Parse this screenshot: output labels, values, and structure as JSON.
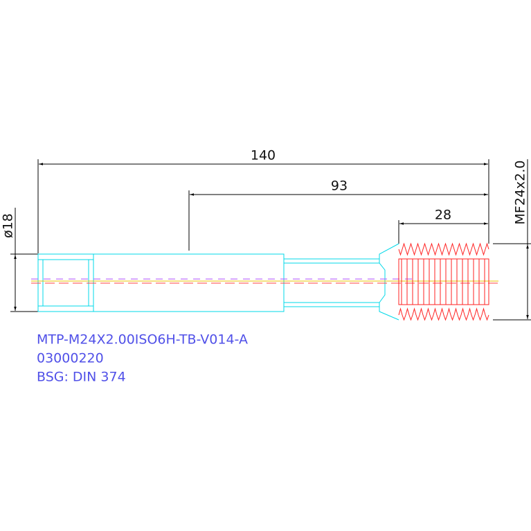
{
  "dimensions": {
    "overall_length": "140",
    "shank_length": "93",
    "thread_length": "28",
    "diameter": "ø18",
    "thread_spec": "MF24x2.0"
  },
  "label": {
    "lines": [
      "MTP-M24X2.00ISO6H-TB-V014-A",
      "03000220",
      "BSG: DIN  374"
    ]
  }
}
